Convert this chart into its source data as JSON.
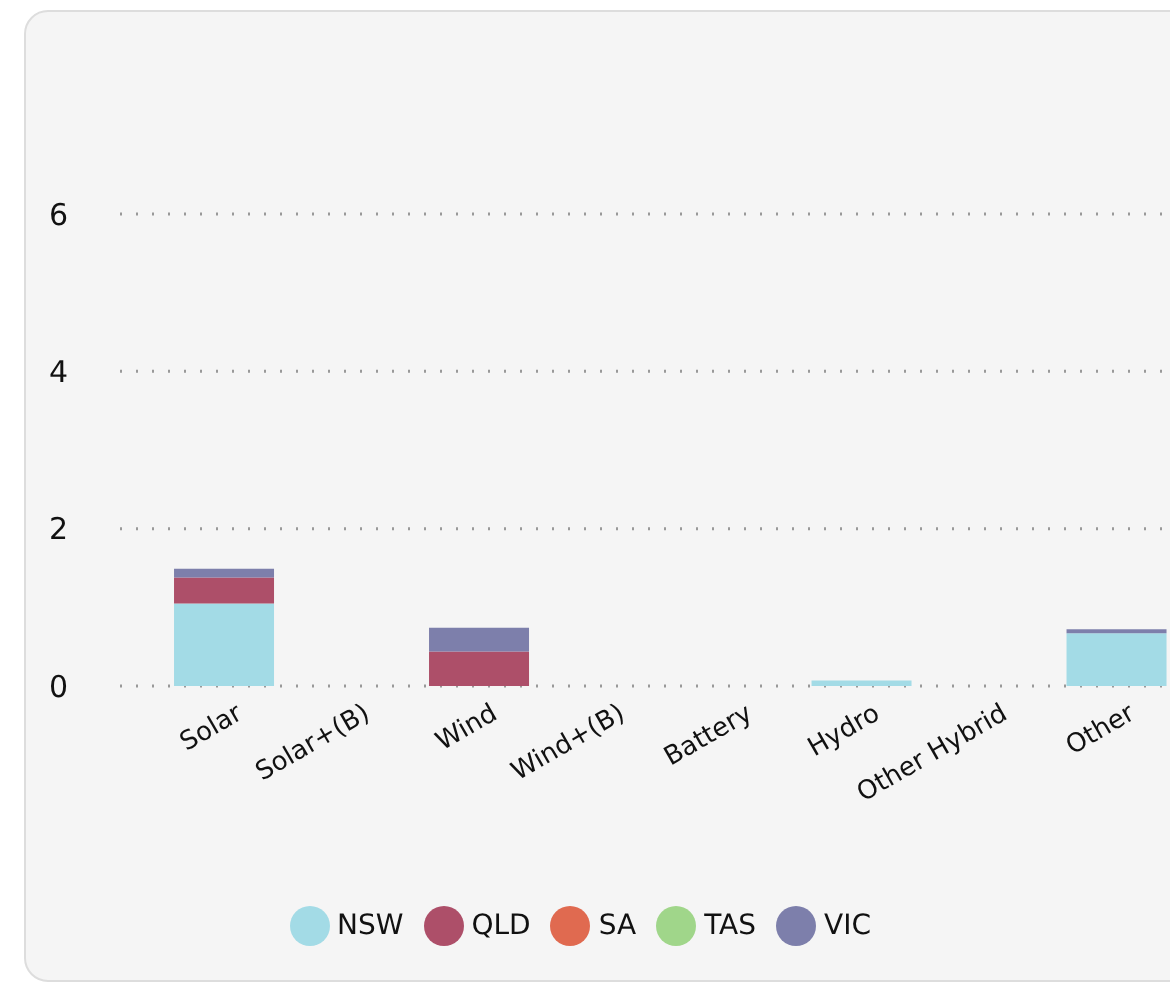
{
  "chart_data": {
    "type": "bar",
    "stacked": true,
    "categories": [
      "Solar",
      "Solar+(B)",
      "Wind",
      "Wind+(B)",
      "Battery",
      "Hydro",
      "Other Hybrid",
      "Other"
    ],
    "series": [
      {
        "name": "NSW",
        "color": "#a3dbe6",
        "values": [
          1.05,
          0,
          0,
          0,
          0,
          0.07,
          0,
          0.67
        ]
      },
      {
        "name": "QLD",
        "color": "#ad4f69",
        "values": [
          0.33,
          0,
          0.44,
          0,
          0,
          0,
          0,
          0
        ]
      },
      {
        "name": "SA",
        "color": "#e06a50",
        "values": [
          0,
          0,
          0,
          0,
          0,
          0,
          0,
          0
        ]
      },
      {
        "name": "TAS",
        "color": "#a0d68a",
        "values": [
          0,
          0,
          0,
          0,
          0,
          0,
          0,
          0
        ]
      },
      {
        "name": "VIC",
        "color": "#7d7fab",
        "values": [
          0.11,
          0,
          0.3,
          0,
          0,
          0,
          0,
          0.05
        ]
      }
    ],
    "ylim": [
      0,
      6
    ],
    "yticks": [
      0,
      2,
      4,
      6
    ],
    "grid": "y",
    "legend": "bottom"
  }
}
